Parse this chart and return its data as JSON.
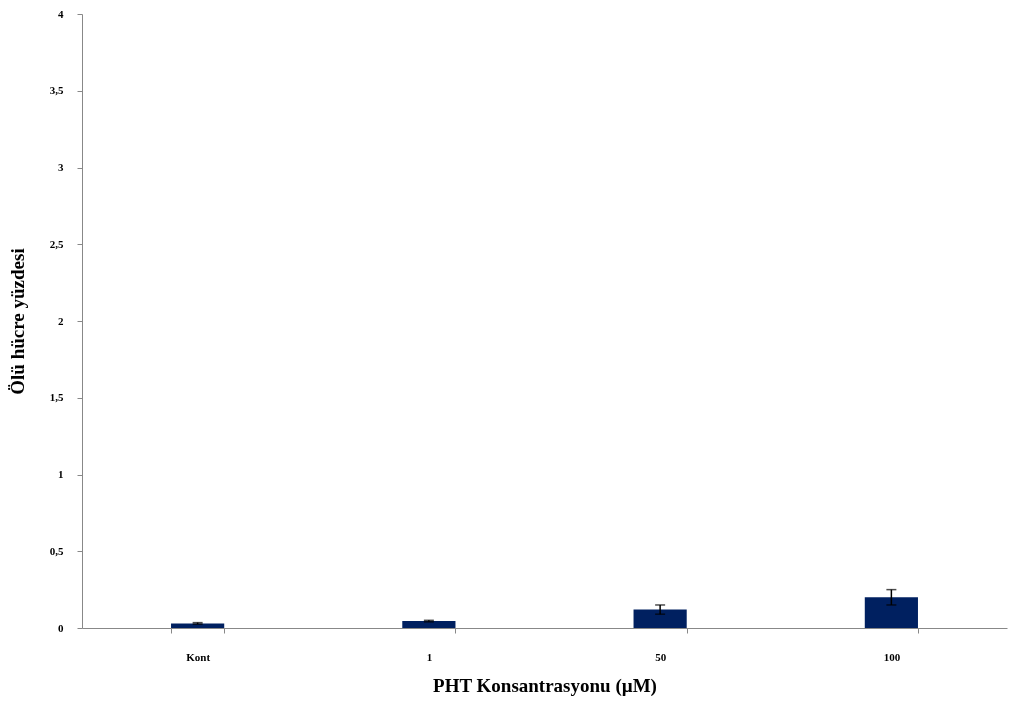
{
  "chart_data": {
    "type": "bar",
    "xlabel": "PHT Konsantrasyonu (µM)",
    "ylabel": "Ölü hücre yüzdesi",
    "categories": [
      "Kont",
      "1",
      "50",
      "100"
    ],
    "values": [
      0.03,
      0.045,
      0.12,
      0.2
    ],
    "errors": [
      0.005,
      0.005,
      0.03,
      0.05
    ],
    "color": "#002060",
    "ylim": [
      0,
      4
    ],
    "yticks": [
      0,
      {
        "value": 0.5,
        "label": "0,5"
      },
      1,
      {
        "value": 1.5,
        "label": "1,5"
      },
      2,
      {
        "value": 2.5,
        "label": "2,5"
      },
      3,
      {
        "value": 3.5,
        "label": "3,5"
      },
      4
    ],
    "grid": false
  }
}
